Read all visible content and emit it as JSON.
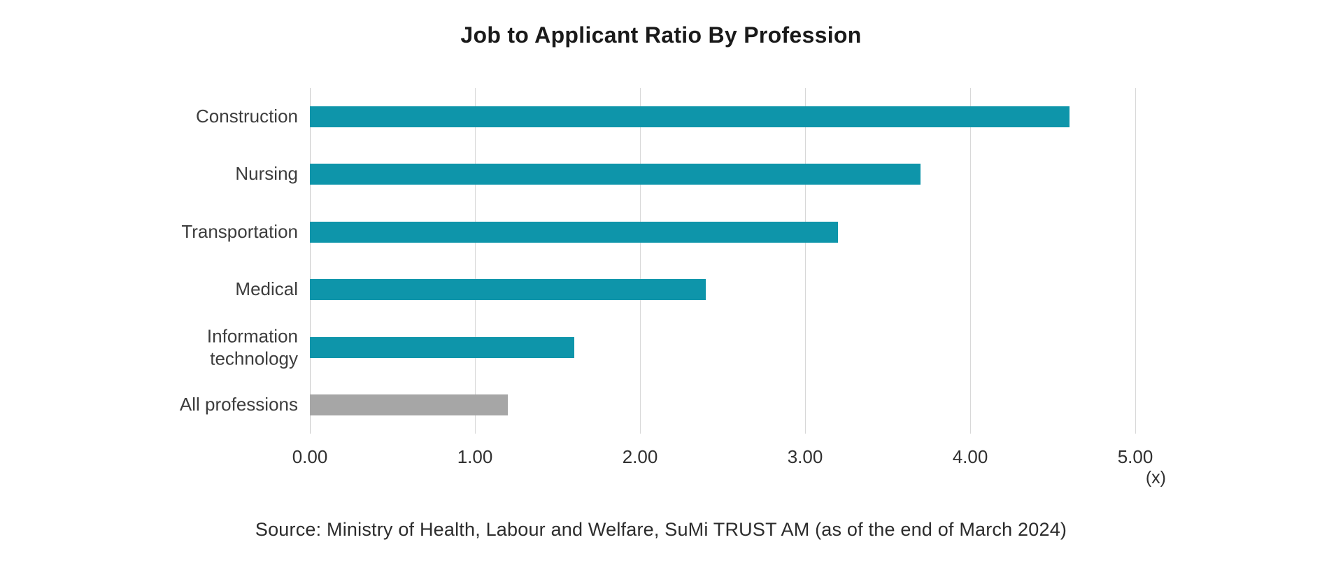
{
  "title": "Job to Applicant Ratio By Profession",
  "chart_data": {
    "type": "bar",
    "orientation": "horizontal",
    "title": "Job to Applicant Ratio By Profession",
    "categories": [
      "Construction",
      "Nursing",
      "Transportation",
      "Medical",
      "Information technology",
      "All professions"
    ],
    "values": [
      4.6,
      3.7,
      3.2,
      2.4,
      1.6,
      1.2
    ],
    "bar_colors": [
      "#0e95aa",
      "#0e95aa",
      "#0e95aa",
      "#0e95aa",
      "#0e95aa",
      "#a6a6a6"
    ],
    "accent_color": "#0e95aa",
    "neutral_color": "#a6a6a6",
    "xlim": [
      0,
      5
    ],
    "x_ticks": [
      0,
      1,
      2,
      3,
      4,
      5
    ],
    "x_tick_labels": [
      "0.00",
      "1.00",
      "2.00",
      "3.00",
      "4.00",
      "5.00"
    ],
    "x_unit_label": "(x)",
    "xlabel": "",
    "ylabel": "",
    "grid": "vertical-gridlines-on",
    "legend": "none"
  },
  "source": "Source: Ministry of Health, Labour and Welfare, SuMi TRUST AM (as of the end of March 2024)"
}
